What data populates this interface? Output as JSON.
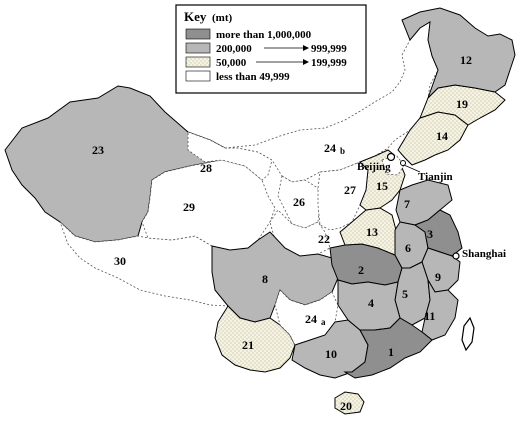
{
  "legend": {
    "title": "Key",
    "unit": "(mt)",
    "items": [
      {
        "label_a": "more than 1,000,000",
        "label_b": "",
        "tier": "high"
      },
      {
        "label_a": "200,000",
        "label_b": "999,999",
        "tier": "medium"
      },
      {
        "label_a": "50,000",
        "label_b": "199,999",
        "tier": "low"
      },
      {
        "label_a": "less than 49,999",
        "label_b": "",
        "tier": "none"
      }
    ]
  },
  "colors": {
    "high": "#8f8f8f",
    "medium": "#b7b7b7",
    "low": "#f2efdc",
    "none": "#ffffff",
    "border": "#000000",
    "internal_border": "#555555"
  },
  "regions": [
    {
      "label": "1",
      "tier": "high"
    },
    {
      "label": "2",
      "tier": "high"
    },
    {
      "label": "3",
      "tier": "high"
    },
    {
      "label": "4",
      "tier": "medium"
    },
    {
      "label": "5",
      "tier": "medium"
    },
    {
      "label": "6",
      "tier": "medium"
    },
    {
      "label": "7",
      "tier": "medium"
    },
    {
      "label": "8",
      "tier": "medium"
    },
    {
      "label": "9",
      "tier": "medium"
    },
    {
      "label": "10",
      "tier": "medium"
    },
    {
      "label": "11",
      "tier": "medium"
    },
    {
      "label": "12",
      "tier": "medium"
    },
    {
      "label": "13",
      "tier": "low"
    },
    {
      "label": "14",
      "tier": "low"
    },
    {
      "label": "15",
      "tier": "low"
    },
    {
      "label": "19",
      "tier": "low"
    },
    {
      "label": "20",
      "tier": "low"
    },
    {
      "label": "21",
      "tier": "low"
    },
    {
      "label": "22",
      "tier": "none"
    },
    {
      "label": "23",
      "tier": "none"
    },
    {
      "label": "24",
      "suffix": "b",
      "tier": "none"
    },
    {
      "label": "24",
      "suffix": "a",
      "tier": "none"
    },
    {
      "label": "26",
      "tier": "none"
    },
    {
      "label": "27",
      "tier": "none"
    },
    {
      "label": "28",
      "tier": "none"
    },
    {
      "label": "29",
      "tier": "none"
    },
    {
      "label": "30",
      "tier": "none"
    }
  ],
  "cities": [
    {
      "name": "Beijing"
    },
    {
      "name": "Tianjin"
    },
    {
      "name": "Shanghai"
    }
  ]
}
